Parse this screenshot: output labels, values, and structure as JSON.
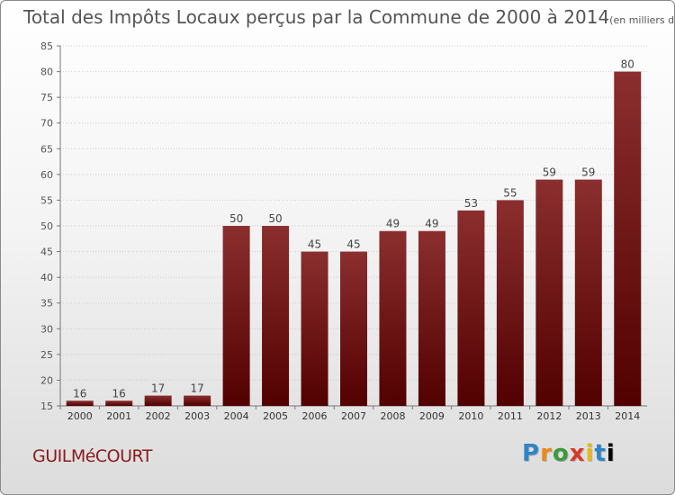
{
  "title": "Total des Impôts Locaux perçus par la Commune de 2000 à 2014",
  "subtitle": "(en milliers d'€)",
  "commune": "GUILMéCOURT",
  "logo": {
    "letters": [
      "P",
      "r",
      "o",
      "x",
      "i",
      "t",
      "i"
    ]
  },
  "colors": {
    "bar_top": "#8b2e2e",
    "bar_bottom": "#520000",
    "title": "#555555",
    "commune": "#8b1a1a"
  },
  "chart_data": {
    "type": "bar",
    "categories": [
      "2000",
      "2001",
      "2002",
      "2003",
      "2004",
      "2005",
      "2006",
      "2007",
      "2008",
      "2009",
      "2010",
      "2011",
      "2012",
      "2013",
      "2014"
    ],
    "values": [
      16,
      16,
      17,
      17,
      50,
      50,
      45,
      45,
      49,
      49,
      53,
      55,
      59,
      59,
      80
    ],
    "ylim": [
      15,
      85
    ],
    "yticks": [
      15,
      20,
      25,
      30,
      35,
      40,
      45,
      50,
      55,
      60,
      65,
      70,
      75,
      80,
      85
    ],
    "grid": true
  }
}
